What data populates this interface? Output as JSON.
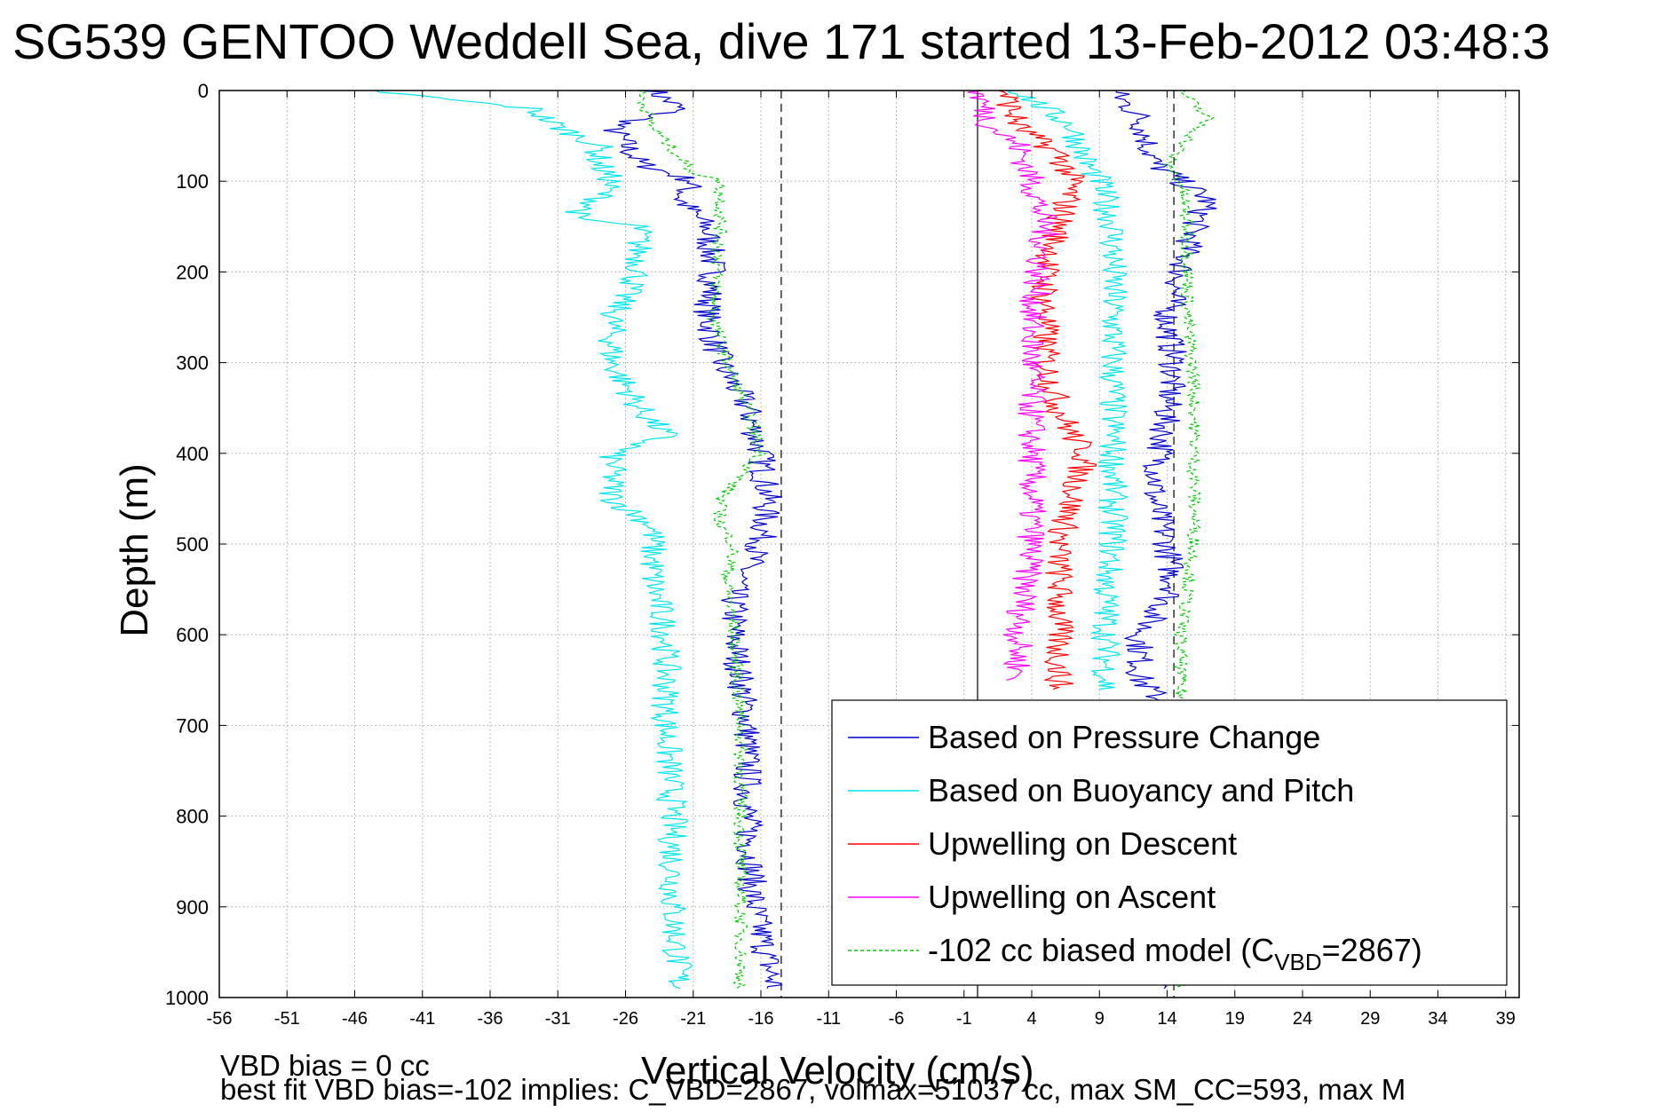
{
  "chart_data": {
    "type": "line",
    "title": "SG539 GENTOO Weddell Sea, dive 171 started 13-Feb-2012 03:48:3",
    "xlabel": "Vertical Velocity (cm/s)",
    "ylabel": "Depth (m)",
    "xlim": [
      -56,
      40
    ],
    "ylim": [
      0,
      1000
    ],
    "y_reversed": true,
    "grid": true,
    "legend_position": "bottom-right",
    "x_ticks": [
      "-56",
      "-51",
      "-46",
      "-41",
      "-36",
      "-31",
      "-26",
      "-21",
      "-16",
      "-11",
      "-6",
      "-1",
      "4",
      "9",
      "14",
      "19",
      "24",
      "29",
      "34",
      "39"
    ],
    "y_ticks": [
      "0",
      "100",
      "200",
      "300",
      "400",
      "500",
      "600",
      "700",
      "800",
      "900",
      "1000"
    ],
    "reference_lines": [
      {
        "x": -14.5,
        "style": "dashed"
      },
      {
        "x": 0,
        "style": "solid"
      },
      {
        "x": 14.5,
        "style": "dashed"
      }
    ],
    "series": [
      {
        "name": "Based on Pressure Change",
        "color": "#0000cc",
        "style": "solid",
        "segments": [
          {
            "depth": [
              0,
              20,
              40,
              80,
              100,
              120,
              150,
              200,
              250,
              300,
              350,
              400,
              450,
              500,
              550,
              600,
              700,
              800,
              900,
              990
            ],
            "value": [
              -24,
              -22,
              -27,
              -25,
              -21,
              -22,
              -20,
              -19.5,
              -20,
              -19,
              -17,
              -16,
              -15.5,
              -16,
              -18,
              -18,
              -17,
              -17,
              -16.5,
              -15
            ]
          },
          {
            "depth": [
              0,
              30,
              80,
              120,
              150,
              200,
              250,
              300,
              350,
              400,
              450,
              500,
              550,
              600,
              650,
              680,
              900,
              990
            ],
            "value": [
              10,
              12,
              13,
              17,
              16,
              15,
              14,
              14.5,
              14,
              13.5,
              13,
              14,
              14.5,
              12,
              12,
              14,
              14,
              13
            ]
          }
        ]
      },
      {
        "name": "Based on Buoyancy and Pitch",
        "color": "#00e5ee",
        "style": "solid",
        "segments": [
          {
            "depth": [
              0,
              20,
              40,
              60,
              80,
              100,
              120,
              140,
              150,
              200,
              250,
              300,
              350,
              380,
              400,
              450,
              480,
              540,
              600,
              700,
              800,
              900,
              990
            ],
            "value": [
              -45,
              -33,
              -31,
              -28,
              -28,
              -27,
              -28,
              -30,
              -25,
              -25,
              -27,
              -27,
              -25,
              -23,
              -27,
              -27,
              -24,
              -24,
              -23,
              -23,
              -22.5,
              -22.5,
              -22
            ]
          },
          {
            "depth": [
              0,
              40,
              80,
              100,
              150,
              200,
              250,
              300,
              350,
              400,
              450,
              500,
              550,
              600,
              660
            ],
            "value": [
              3,
              7,
              8,
              9,
              10,
              10,
              10,
              10,
              10,
              10,
              10,
              10,
              9.5,
              9.5,
              9.5
            ]
          }
        ]
      },
      {
        "name": "Upwelling on Descent",
        "color": "#ff0000",
        "style": "solid",
        "segments": [
          {
            "depth": [
              0,
              40,
              70,
              100,
              150,
              200,
              250,
              300,
              350,
              380,
              400,
              450,
              500,
              550,
              600,
              660
            ],
            "value": [
              2,
              3,
              6,
              7,
              6,
              5,
              5,
              5,
              6,
              7,
              8,
              7,
              6,
              6,
              6,
              6
            ]
          }
        ]
      },
      {
        "name": "Upwelling on Ascent",
        "color": "#ff00ff",
        "style": "solid",
        "segments": [
          {
            "depth": [
              0,
              40,
              60,
              100,
              150,
              200,
              250,
              300,
              350,
              400,
              450,
              500,
              550,
              600,
              650
            ],
            "value": [
              0,
              1,
              3,
              4,
              5,
              4.5,
              4,
              4,
              4,
              4,
              4,
              4,
              3.5,
              3,
              3
            ]
          }
        ]
      },
      {
        "name": "-102 cc biased model (C",
        "name_subscript": "VBD",
        "name_suffix": "=2867)",
        "color": "#00cc00",
        "style": "dashed",
        "segments": [
          {
            "depth": [
              0,
              40,
              90,
              100,
              150,
              250,
              300,
              350,
              400,
              450,
              480,
              500,
              540,
              600,
              700,
              800,
              900,
              990
            ],
            "value": [
              -25,
              -24,
              -21,
              -19,
              -19,
              -19.5,
              -18.5,
              -17,
              -16,
              -19,
              -19,
              -18,
              -18.5,
              -18,
              -17.5,
              -17.5,
              -17.5,
              -17.5
            ]
          },
          {
            "depth": [
              0,
              30,
              80,
              100,
              150,
              250,
              320,
              400,
              450,
              500,
              600,
              670,
              700,
              900,
              990
            ],
            "value": [
              15,
              17,
              14,
              15,
              15.5,
              15.5,
              16,
              16,
              16,
              16,
              15,
              15,
              15,
              15,
              15
            ]
          }
        ]
      }
    ]
  },
  "footnotes": {
    "vbd_bias": "VBD bias = 0 cc",
    "best_fit": "best fit VBD bias=-102 implies: C_VBD=2867, volmax=51037 cc, max SM_CC=593, max M"
  }
}
